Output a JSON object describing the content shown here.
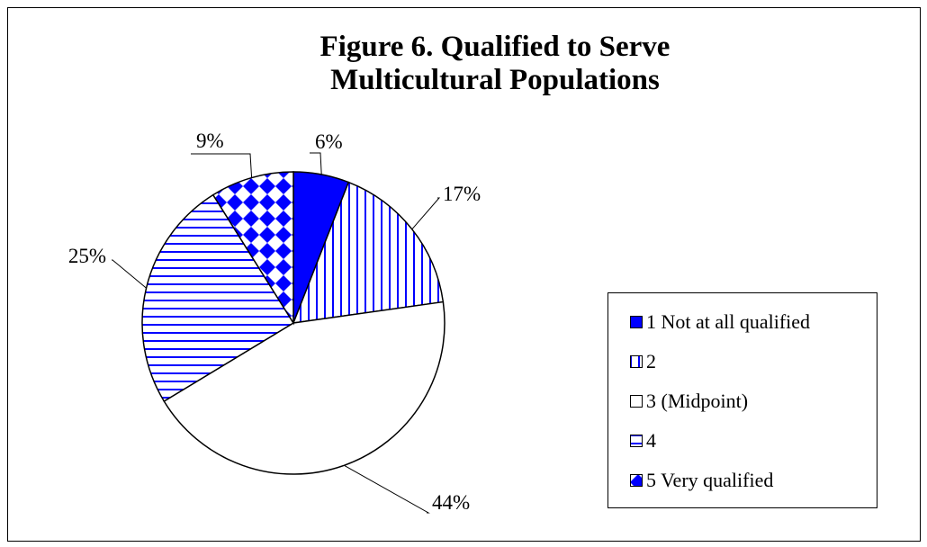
{
  "chart_data": {
    "type": "pie",
    "title": "Figure 6. Qualified to Serve Multicultural Populations",
    "title_lines": [
      "Figure 6. Qualified to Serve",
      "Multicultural Populations"
    ],
    "categories": [
      "1 Not at all qualified",
      "2",
      "3 (Midpoint)",
      "4",
      "5 Very qualified"
    ],
    "values": [
      6,
      17,
      44,
      25,
      9
    ],
    "value_labels": [
      "6%",
      "17%",
      "44%",
      "25%",
      "9%"
    ],
    "patterns": [
      "solid",
      "vertical-stripes",
      "none",
      "horizontal-stripes",
      "diamond-check"
    ],
    "colors": [
      "#0000ff",
      "#0000ff",
      "#ffffff",
      "#0000ff",
      "#0000ff"
    ],
    "legend_position": "right",
    "start_angle_deg": 0,
    "direction": "clockwise"
  }
}
